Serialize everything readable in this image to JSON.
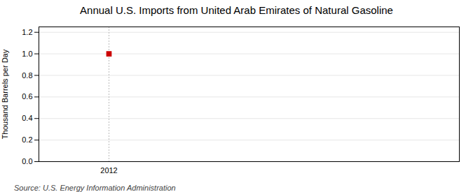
{
  "chart_data": {
    "type": "scatter",
    "title": "Annual U.S. Imports from United Arab Emirates of Natural Gasoline",
    "ylabel": "Thousand Barrels per Day",
    "source": "Source: U.S. Energy Information Administration",
    "x": [
      2012
    ],
    "values": [
      1.0
    ],
    "color": "#cc0000",
    "marker": "square",
    "xlim": [
      2011.7,
      2013.5
    ],
    "xticks": [
      2012
    ],
    "ylim": [
      0.0,
      1.25
    ],
    "yticks": [
      {
        "value": 0,
        "label": "0.0"
      },
      0.2,
      0.4,
      0.6,
      0.8,
      {
        "value": 1,
        "label": "1.0"
      },
      1.2
    ],
    "grid": true
  }
}
